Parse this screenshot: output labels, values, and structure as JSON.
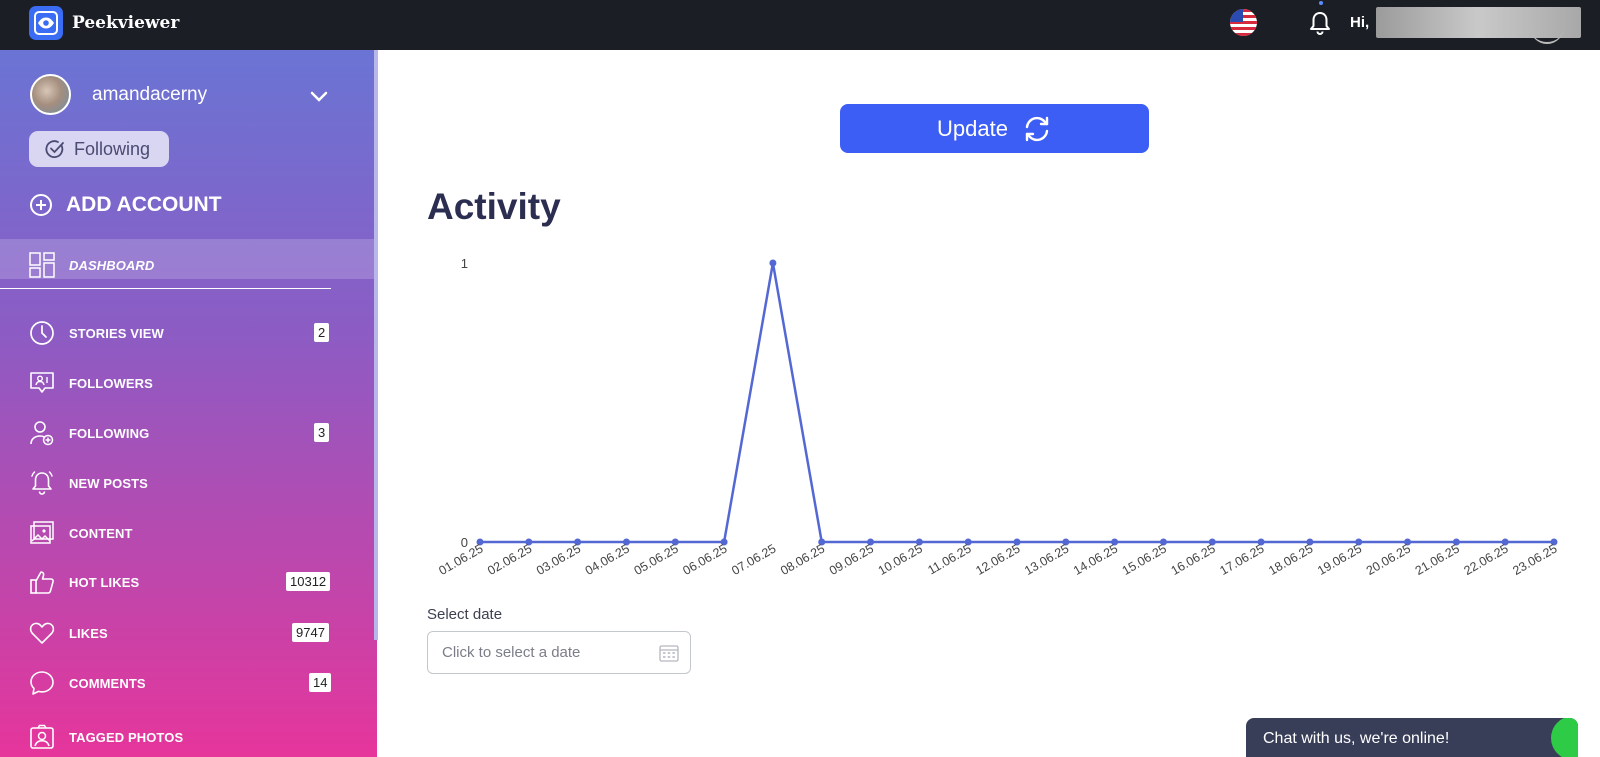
{
  "header": {
    "brand": "Peekviewer",
    "greeting": "Hi,",
    "icons": {
      "logo": "eye-icon",
      "flag": "us-flag-icon",
      "notifications": "bell-icon"
    }
  },
  "account": {
    "username": "amandacerny",
    "following_label": "Following",
    "add_account_label": "ADD ACCOUNT"
  },
  "sidebar": {
    "items": [
      {
        "label": "DASHBOARD",
        "icon": "dashboard-icon",
        "badge": "",
        "active": true
      },
      {
        "label": "STORIES VIEW",
        "icon": "clock-icon",
        "badge": "2"
      },
      {
        "label": "FOLLOWERS",
        "icon": "followers-icon",
        "badge": ""
      },
      {
        "label": "FOLLOWING",
        "icon": "user-add-icon",
        "badge": "3"
      },
      {
        "label": "NEW POSTS",
        "icon": "bell-icon",
        "badge": ""
      },
      {
        "label": "CONTENT",
        "icon": "image-icon",
        "badge": ""
      },
      {
        "label": "HOT LIKES",
        "icon": "thumbs-up-icon",
        "badge": "10312"
      },
      {
        "label": "LIKES",
        "icon": "heart-icon",
        "badge": "9747"
      },
      {
        "label": "COMMENTS",
        "icon": "comment-icon",
        "badge": "14"
      },
      {
        "label": "TAGGED PHOTOS",
        "icon": "tagged-user-icon",
        "badge": ""
      }
    ]
  },
  "main": {
    "update_label": "Update",
    "activity_title": "Activity",
    "select_date_label": "Select date",
    "date_placeholder": "Click to select a date"
  },
  "chat": {
    "label": "Chat with us, we're online!"
  },
  "colors": {
    "accent": "#3d5ef5",
    "line": "#5468d4",
    "topbar": "#1c1e26",
    "chat_online": "#2ecb47"
  },
  "chart_data": {
    "type": "line",
    "x": [
      "01.06.25",
      "02.06.25",
      "03.06.25",
      "04.06.25",
      "05.06.25",
      "06.06.25",
      "07.06.25",
      "08.06.25",
      "09.06.25",
      "10.06.25",
      "11.06.25",
      "12.06.25",
      "13.06.25",
      "14.06.25",
      "15.06.25",
      "16.06.25",
      "17.06.25",
      "18.06.25",
      "19.06.25",
      "20.06.25",
      "21.06.25",
      "22.06.25",
      "23.06.25"
    ],
    "series": [
      {
        "values": [
          0,
          0,
          0,
          0,
          0,
          0,
          1,
          0,
          0,
          0,
          0,
          0,
          0,
          0,
          0,
          0,
          0,
          0,
          0,
          0,
          0,
          0,
          0
        ]
      }
    ],
    "yticks": [
      0,
      1
    ],
    "ylim": [
      0,
      1
    ],
    "grid": false
  }
}
